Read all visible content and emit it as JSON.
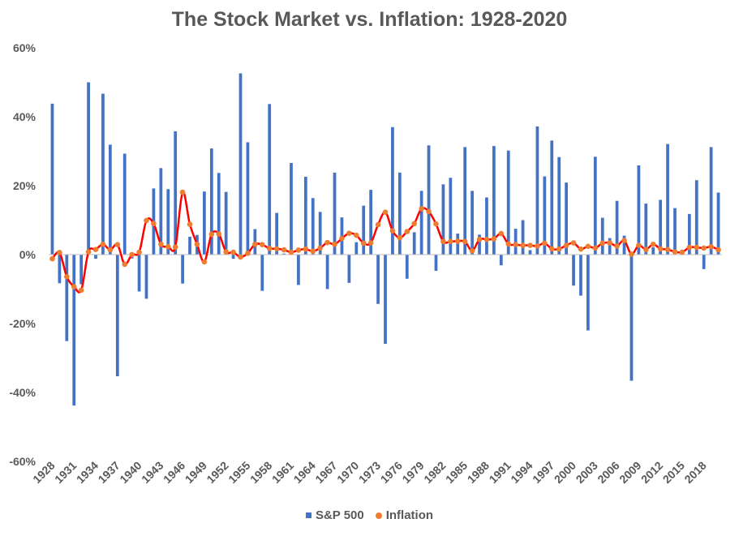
{
  "chart_data": {
    "type": "bar",
    "title": "The Stock Market vs. Inflation: 1928-2020",
    "xlabel": "",
    "ylabel": "",
    "ylim": [
      -0.6,
      0.6
    ],
    "ytick_values": [
      -0.6,
      -0.4,
      -0.2,
      0,
      0.2,
      0.4,
      0.6
    ],
    "ytick_labels": [
      "-60%",
      "-40%",
      "-20%",
      "0%",
      "20%",
      "40%",
      "60%"
    ],
    "x_tick_labels": [
      "1928",
      "1931",
      "1934",
      "1937",
      "1940",
      "1943",
      "1946",
      "1949",
      "1952",
      "1955",
      "1958",
      "1961",
      "1964",
      "1967",
      "1970",
      "1973",
      "1976",
      "1979",
      "1982",
      "1985",
      "1988",
      "1991",
      "1994",
      "1997",
      "2000",
      "2003",
      "2006",
      "2009",
      "2012",
      "2015",
      "2018"
    ],
    "legend_position": "bottom",
    "colors": {
      "sp500": "#4472C4",
      "inflation": "#ED7D31",
      "trend": "#FF0000",
      "text": "#595959"
    },
    "years": [
      1928,
      1929,
      1930,
      1931,
      1932,
      1933,
      1934,
      1935,
      1936,
      1937,
      1938,
      1939,
      1940,
      1941,
      1942,
      1943,
      1944,
      1945,
      1946,
      1947,
      1948,
      1949,
      1950,
      1951,
      1952,
      1953,
      1954,
      1955,
      1956,
      1957,
      1958,
      1959,
      1960,
      1961,
      1962,
      1963,
      1964,
      1965,
      1966,
      1967,
      1968,
      1969,
      1970,
      1971,
      1972,
      1973,
      1974,
      1975,
      1976,
      1977,
      1978,
      1979,
      1980,
      1981,
      1982,
      1983,
      1984,
      1985,
      1986,
      1987,
      1988,
      1989,
      1990,
      1991,
      1992,
      1993,
      1994,
      1995,
      1996,
      1997,
      1998,
      1999,
      2000,
      2001,
      2002,
      2003,
      2004,
      2005,
      2006,
      2007,
      2008,
      2009,
      2010,
      2011,
      2012,
      2013,
      2014,
      2015,
      2016,
      2017,
      2018,
      2019,
      2020
    ],
    "series": [
      {
        "name": "S&P 500",
        "type": "bar",
        "values": [
          43.8,
          -8.3,
          -25.1,
          -43.8,
          -8.6,
          50.0,
          -1.2,
          46.7,
          31.9,
          -35.3,
          29.3,
          -1.1,
          -10.7,
          -12.8,
          19.2,
          25.1,
          19.0,
          35.8,
          -8.4,
          5.2,
          5.7,
          18.3,
          30.8,
          23.7,
          18.2,
          -1.2,
          52.6,
          32.6,
          7.4,
          -10.5,
          43.7,
          12.1,
          0.3,
          26.6,
          -8.8,
          22.6,
          16.4,
          12.4,
          -10.0,
          23.8,
          10.8,
          -8.2,
          3.6,
          14.2,
          18.8,
          -14.3,
          -25.9,
          37.0,
          23.8,
          -7.0,
          6.5,
          18.5,
          31.7,
          -4.7,
          20.4,
          22.3,
          6.1,
          31.2,
          18.5,
          5.8,
          16.6,
          31.5,
          -3.1,
          30.2,
          7.5,
          10.0,
          1.3,
          37.2,
          22.7,
          33.1,
          28.3,
          20.9,
          -9.0,
          -11.9,
          -22.0,
          28.4,
          10.7,
          4.8,
          15.6,
          5.5,
          -36.6,
          25.9,
          14.8,
          2.1,
          15.9,
          32.1,
          13.5,
          1.4,
          11.8,
          21.6,
          -4.2,
          31.2,
          18.0
        ]
      },
      {
        "name": "Inflation",
        "type": "scatter",
        "values": [
          -1.2,
          0.6,
          -6.4,
          -9.3,
          -10.3,
          0.8,
          1.5,
          3.0,
          1.4,
          2.9,
          -2.8,
          0.0,
          0.7,
          9.9,
          9.0,
          3.0,
          2.3,
          2.2,
          18.1,
          8.8,
          3.0,
          -2.1,
          5.9,
          6.0,
          0.8,
          0.7,
          -0.7,
          0.4,
          3.0,
          2.9,
          1.8,
          1.7,
          1.4,
          0.7,
          1.3,
          1.6,
          1.0,
          1.9,
          3.5,
          3.0,
          4.7,
          6.2,
          5.6,
          3.3,
          3.4,
          8.7,
          12.3,
          6.9,
          4.9,
          6.7,
          9.0,
          13.3,
          12.5,
          8.9,
          3.8,
          3.8,
          3.9,
          3.8,
          1.1,
          4.4,
          4.4,
          4.6,
          6.1,
          3.1,
          2.9,
          2.7,
          2.7,
          2.5,
          3.3,
          1.7,
          1.6,
          2.7,
          3.4,
          1.6,
          2.4,
          1.9,
          3.3,
          3.4,
          2.5,
          4.1,
          0.1,
          2.7,
          1.5,
          3.0,
          1.7,
          1.5,
          0.8,
          0.7,
          2.1,
          2.1,
          1.9,
          2.3,
          1.4
        ]
      }
    ]
  }
}
